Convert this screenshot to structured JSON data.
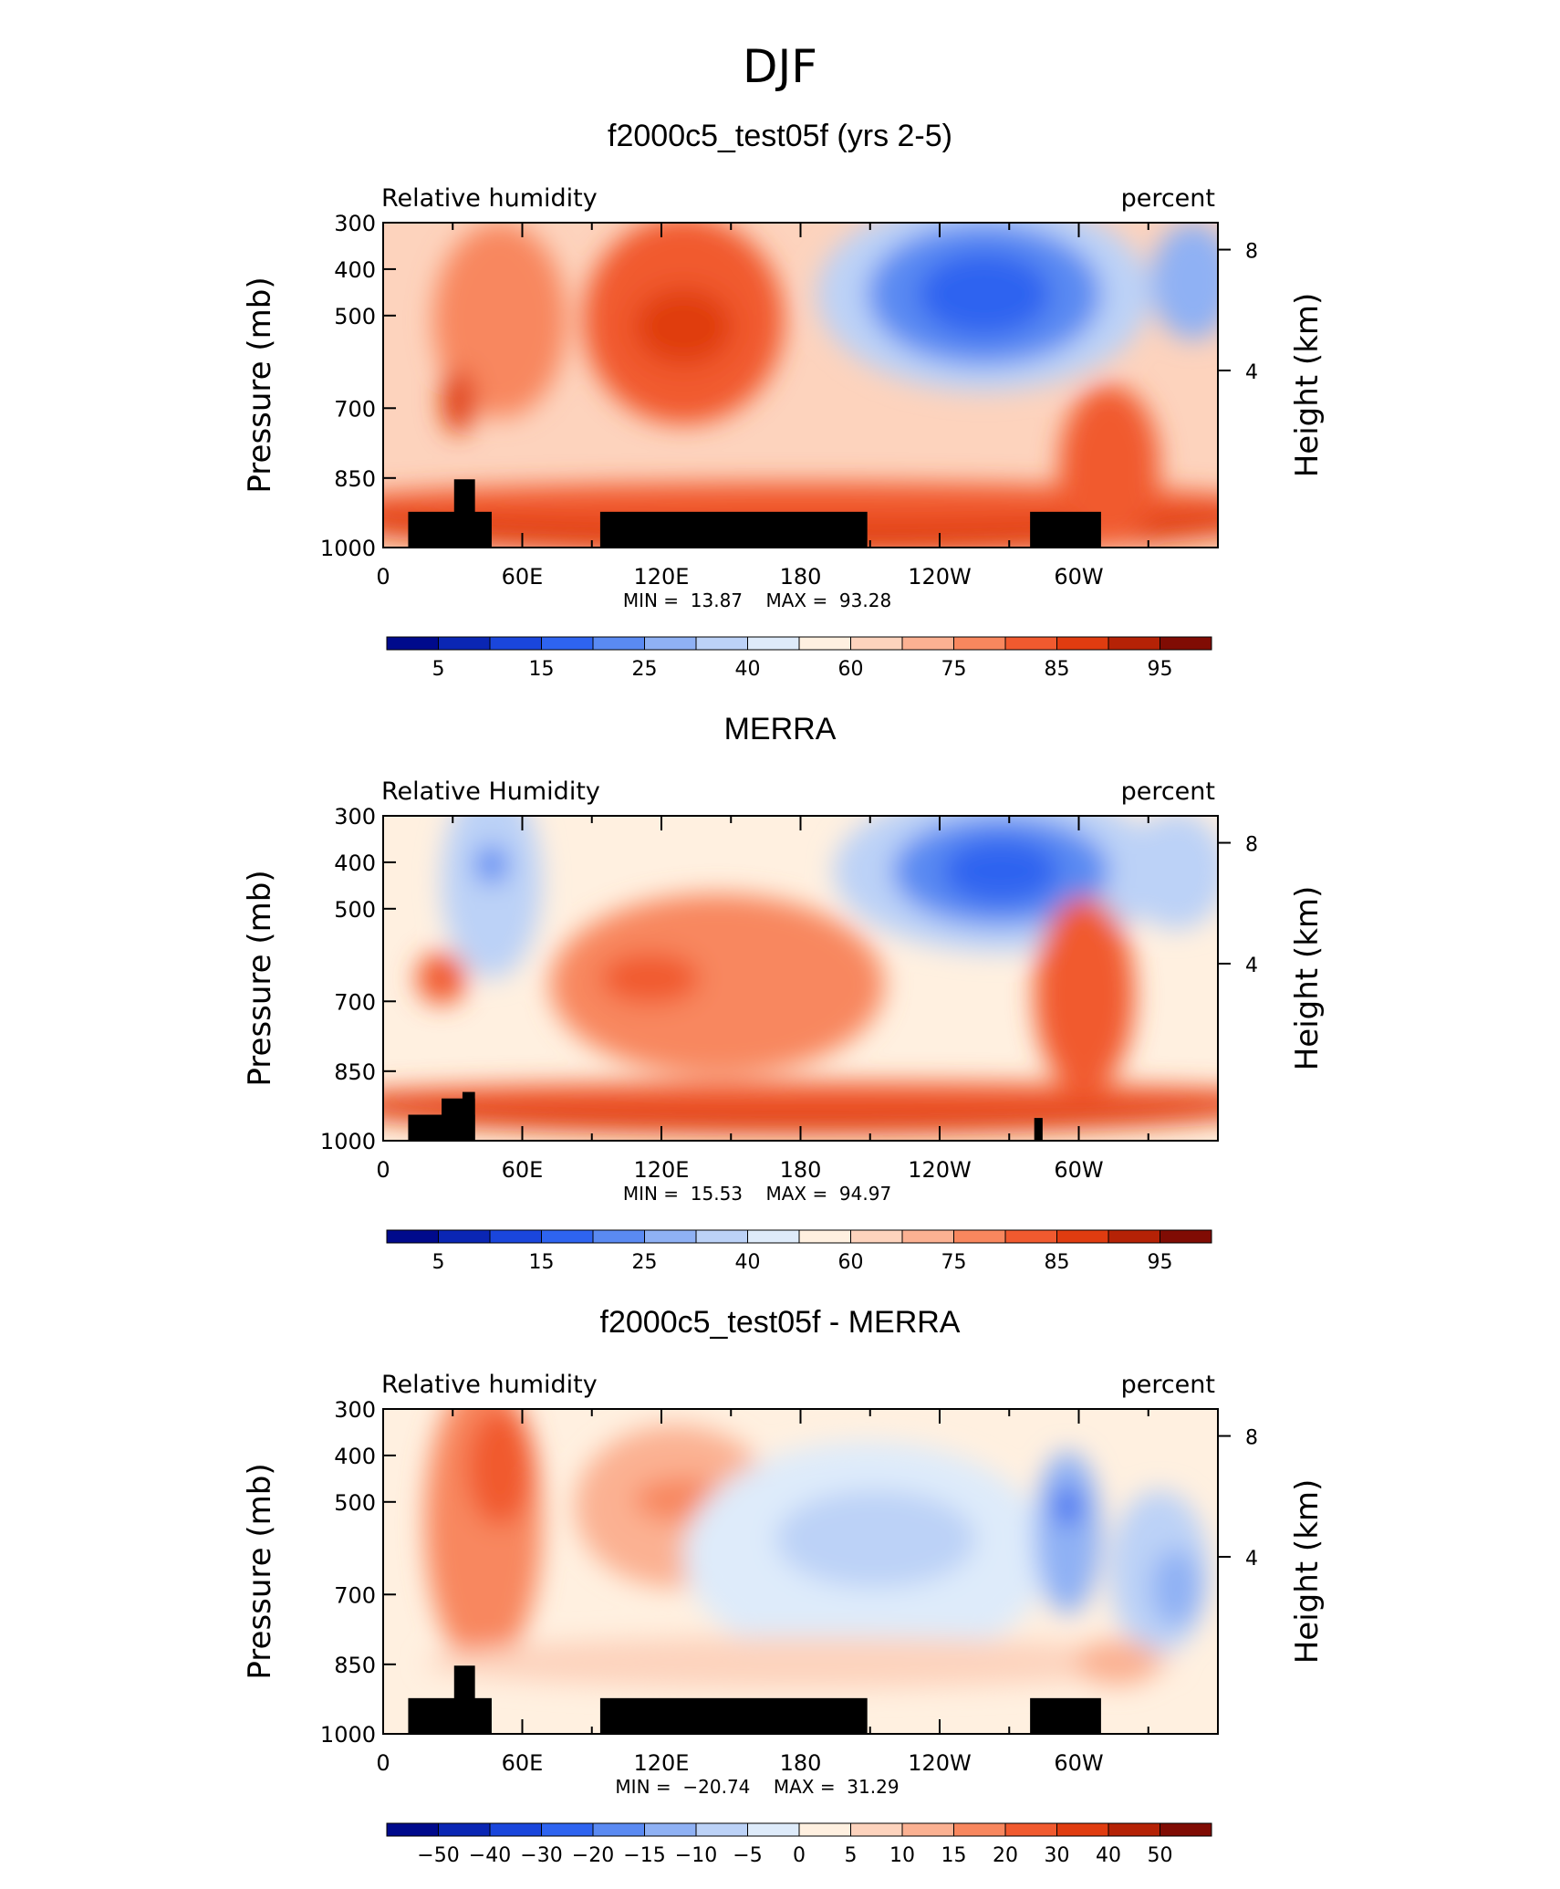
{
  "main_title": "DJF",
  "chart_data": [
    {
      "type": "heatmap",
      "title": "f2000c5_test05f (yrs 2-5)",
      "left_label": "Relative humidity",
      "right_label": "percent",
      "ylabel": "Pressure (mb)",
      "y2label": "Height (km)",
      "yticks": [
        "300",
        "400",
        "500",
        "700",
        "850",
        "1000"
      ],
      "y2ticks": [
        "8",
        "4"
      ],
      "xticks": [
        "0",
        "60E",
        "120E",
        "180",
        "120W",
        "60W"
      ],
      "min_label": "MIN =",
      "min_value": "13.87",
      "max_label": "MAX =",
      "max_value": "93.28",
      "colorbar_labels": [
        "5",
        "15",
        "25",
        "40",
        "60",
        "75",
        "85",
        "95"
      ],
      "colorbar_colors": [
        "#000a8c",
        "#0a26b4",
        "#1a46dc",
        "#2e64f0",
        "#5a8af2",
        "#8fb1f4",
        "#bcd2f7",
        "#deebfa",
        "#fff0e0",
        "#fdd3bd",
        "#fbb192",
        "#f8875e",
        "#f15a2f",
        "#e03c10",
        "#b52206",
        "#800c04"
      ]
    },
    {
      "type": "heatmap",
      "title": "MERRA",
      "left_label": "Relative Humidity",
      "right_label": "percent",
      "ylabel": "Pressure (mb)",
      "y2label": "Height (km)",
      "yticks": [
        "300",
        "400",
        "500",
        "700",
        "850",
        "1000"
      ],
      "y2ticks": [
        "8",
        "4"
      ],
      "xticks": [
        "0",
        "60E",
        "120E",
        "180",
        "120W",
        "60W"
      ],
      "min_label": "MIN =",
      "min_value": "15.53",
      "max_label": "MAX =",
      "max_value": "94.97",
      "colorbar_labels": [
        "5",
        "15",
        "25",
        "40",
        "60",
        "75",
        "85",
        "95"
      ],
      "colorbar_colors": [
        "#000a8c",
        "#0a26b4",
        "#1a46dc",
        "#2e64f0",
        "#5a8af2",
        "#8fb1f4",
        "#bcd2f7",
        "#deebfa",
        "#fff0e0",
        "#fdd3bd",
        "#fbb192",
        "#f8875e",
        "#f15a2f",
        "#e03c10",
        "#b52206",
        "#800c04"
      ]
    },
    {
      "type": "heatmap",
      "title": "f2000c5_test05f - MERRA",
      "left_label": "Relative humidity",
      "right_label": "percent",
      "ylabel": "Pressure (mb)",
      "y2label": "Height (km)",
      "yticks": [
        "300",
        "400",
        "500",
        "700",
        "850",
        "1000"
      ],
      "y2ticks": [
        "8",
        "4"
      ],
      "xticks": [
        "0",
        "60E",
        "120E",
        "180",
        "120W",
        "60W"
      ],
      "min_label": "MIN =",
      "min_value": "−20.74",
      "max_label": "MAX =",
      "max_value": "31.29",
      "colorbar_labels": [
        "−50",
        "−40",
        "−30",
        "−20",
        "−15",
        "−10",
        "−5",
        "0",
        "5",
        "10",
        "15",
        "20",
        "30",
        "40",
        "50"
      ],
      "colorbar_colors": [
        "#000a8c",
        "#0a26b4",
        "#1a46dc",
        "#2e64f0",
        "#5a8af2",
        "#8fb1f4",
        "#bcd2f7",
        "#deebfa",
        "#fff0e0",
        "#fdd3bd",
        "#fbb192",
        "#f8875e",
        "#f15a2f",
        "#e03c10",
        "#b52206",
        "#800c04"
      ]
    }
  ]
}
